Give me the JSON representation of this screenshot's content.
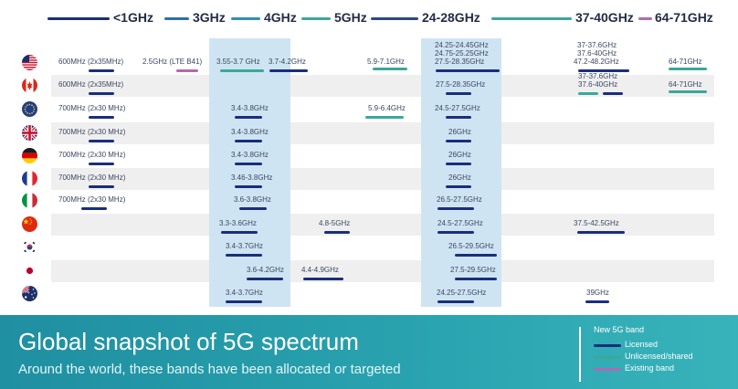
{
  "colors": {
    "licensed": "#1a2e7a",
    "unlicensed": "#3aa89a",
    "existing": "#b06ab0",
    "highlight": "#cfe4f3",
    "footer": "#2aa4b0"
  },
  "header_bands": [
    {
      "label": "<1GHz",
      "color": "#1a2e7a"
    },
    {
      "label": "3GHz",
      "color": "#2d6fa8"
    },
    {
      "label": "4GHz",
      "color": "#2d8fb8"
    },
    {
      "label": "5GHz",
      "color": "#3aa89a"
    },
    {
      "label": "24-28GHz",
      "color": "#2a4a82"
    },
    {
      "label": "37-40GHz",
      "color": "#3aa89a"
    },
    {
      "label": "64-71GHz",
      "color": "#b06ab0"
    }
  ],
  "rows": [
    {
      "country": "United States",
      "flag": "flag-us-icon",
      "shaded": false,
      "bands": [
        {
          "text": "600MHz (2x35MHz)",
          "type": "licensed"
        },
        {
          "text": "2.5GHz (LTE B41)",
          "type": "existing"
        },
        {
          "text": "3.55-3.7 GHz",
          "type": "unlicensed"
        },
        {
          "text": "3.7-4.2GHz",
          "type": "licensed"
        },
        {
          "text": "5.9-7.1GHz",
          "type": "unlicensed"
        },
        {
          "text": "24.25-24.45GHz",
          "type": "licensed"
        },
        {
          "text": "24.75-25.25GHz",
          "type": "licensed"
        },
        {
          "text": "27.5-28.35GHz",
          "type": "licensed"
        },
        {
          "text": "37-37.6GHz",
          "type": "licensed"
        },
        {
          "text": "37.6-40GHz",
          "type": "licensed"
        },
        {
          "text": "47.2-48.2GHz",
          "type": "licensed"
        },
        {
          "text": "64-71GHz",
          "type": "unlicensed"
        }
      ]
    },
    {
      "country": "Canada",
      "flag": "flag-ca-icon",
      "shaded": true,
      "bands": [
        {
          "text": "600MHz (2x35MHz)",
          "type": "licensed"
        },
        {
          "text": "27.5-28.35GHz",
          "type": "licensed"
        },
        {
          "text": "37-37.6GHz",
          "type": "unlicensed"
        },
        {
          "text": "37.6-40GHz",
          "type": "licensed"
        },
        {
          "text": "64-71GHz",
          "type": "unlicensed"
        }
      ]
    },
    {
      "country": "European Union",
      "flag": "flag-eu-icon",
      "shaded": false,
      "bands": [
        {
          "text": "700MHz (2x30 MHz)",
          "type": "licensed"
        },
        {
          "text": "3.4-3.8GHz",
          "type": "licensed"
        },
        {
          "text": "5.9-6.4GHz",
          "type": "unlicensed"
        },
        {
          "text": "24.5-27.5GHz",
          "type": "licensed"
        }
      ]
    },
    {
      "country": "United Kingdom",
      "flag": "flag-uk-icon",
      "shaded": true,
      "bands": [
        {
          "text": "700MHz (2x30 MHz)",
          "type": "licensed"
        },
        {
          "text": "3.4-3.8GHz",
          "type": "licensed"
        },
        {
          "text": "26GHz",
          "type": "licensed"
        }
      ]
    },
    {
      "country": "Germany",
      "flag": "flag-de-icon",
      "shaded": false,
      "bands": [
        {
          "text": "700MHz (2x30 MHz)",
          "type": "licensed"
        },
        {
          "text": "3.4-3.8GHz",
          "type": "licensed"
        },
        {
          "text": "26GHz",
          "type": "licensed"
        }
      ]
    },
    {
      "country": "France",
      "flag": "flag-fr-icon",
      "shaded": true,
      "bands": [
        {
          "text": "700MHz (2x30 MHz)",
          "type": "licensed"
        },
        {
          "text": "3.46-3.8GHz",
          "type": "licensed"
        },
        {
          "text": "26GHz",
          "type": "licensed"
        }
      ]
    },
    {
      "country": "Italy",
      "flag": "flag-it-icon",
      "shaded": false,
      "bands": [
        {
          "text": "700MHz (2x30 MHz)",
          "type": "licensed"
        },
        {
          "text": "3.6-3.8GHz",
          "type": "licensed"
        },
        {
          "text": "26.5-27.5GHz",
          "type": "licensed"
        }
      ]
    },
    {
      "country": "China",
      "flag": "flag-cn-icon",
      "shaded": true,
      "bands": [
        {
          "text": "3.3-3.6GHz",
          "type": "licensed"
        },
        {
          "text": "4.8-5GHz",
          "type": "licensed"
        },
        {
          "text": "24.5-27.5GHz",
          "type": "licensed"
        },
        {
          "text": "37.5-42.5GHz",
          "type": "licensed"
        }
      ]
    },
    {
      "country": "South Korea",
      "flag": "flag-kr-icon",
      "shaded": false,
      "bands": [
        {
          "text": "3.4-3.7GHz",
          "type": "licensed"
        },
        {
          "text": "26.5-29.5GHz",
          "type": "licensed"
        }
      ]
    },
    {
      "country": "Japan",
      "flag": "flag-jp-icon",
      "shaded": true,
      "bands": [
        {
          "text": "3.6-4.2GHz",
          "type": "licensed"
        },
        {
          "text": "4.4-4.9GHz",
          "type": "licensed"
        },
        {
          "text": "27.5-29.5GHz",
          "type": "licensed"
        }
      ]
    },
    {
      "country": "Australia",
      "flag": "flag-au-icon",
      "shaded": false,
      "bands": [
        {
          "text": "3.4-3.7GHz",
          "type": "licensed"
        },
        {
          "text": "24.25-27.5GHz",
          "type": "licensed"
        },
        {
          "text": "39GHz",
          "type": "licensed"
        }
      ]
    }
  ],
  "footer": {
    "title": "Global snapshot of 5G spectrum",
    "subtitle": "Around the world, these bands have been allocated or targeted"
  },
  "legend": {
    "title": "New 5G band",
    "items": [
      {
        "label": "Licensed",
        "type": "licensed"
      },
      {
        "label": "Unlicensed/shared",
        "type": "unlicensed"
      },
      {
        "label": "Existing band",
        "type": "existing"
      }
    ]
  }
}
